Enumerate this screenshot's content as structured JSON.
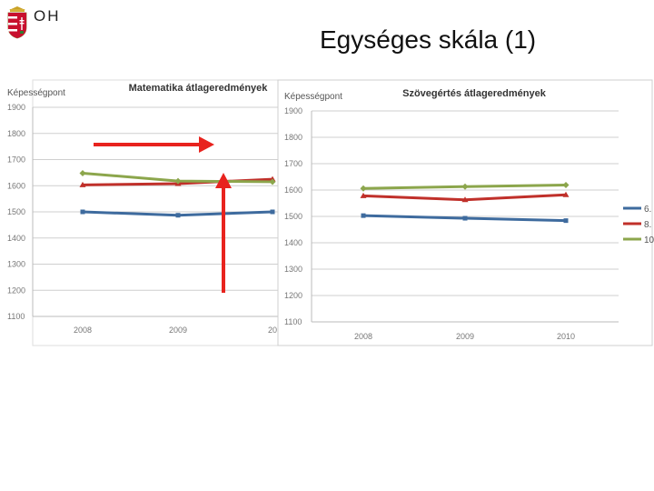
{
  "header": {
    "logo_text": "OH",
    "title": "Egységes skála (1)"
  },
  "colors": {
    "series1": "#3E6B9E",
    "series2": "#C0302A",
    "series3": "#8CA64C",
    "arrow": "#E8231E"
  },
  "chart_data": [
    {
      "type": "line",
      "title": "Matematika átlageredmények",
      "ylabel": "Képességpont",
      "ylim": [
        1100,
        1900
      ],
      "yticks": [
        1100,
        1200,
        1300,
        1400,
        1500,
        1600,
        1700,
        1800,
        1900
      ],
      "ytick_labels": [
        "1100",
        "1200",
        "1300",
        "1400",
        "1500",
        "1600",
        "1700",
        "1800",
        "1900"
      ],
      "x": [
        "2008",
        "2009",
        "20"
      ],
      "grid": true,
      "series": [
        {
          "values": [
            1500,
            1487,
            1500
          ],
          "color": "#3E6B9E",
          "marker": "square"
        },
        {
          "values": [
            1603,
            1608,
            1625
          ],
          "color": "#C0302A",
          "marker": "triangle"
        },
        {
          "values": [
            1648,
            1618,
            1615
          ],
          "color": "#8CA64C",
          "marker": "diamond"
        }
      ]
    },
    {
      "type": "line",
      "title": "Szövegértés átlageredmények",
      "ylabel": "Képességpont",
      "ylim": [
        1100,
        1900
      ],
      "yticks": [
        1100,
        1200,
        1300,
        1400,
        1500,
        1600,
        1700,
        1800,
        1900
      ],
      "ytick_labels": [
        "1100",
        "1200",
        "1300",
        "1400",
        "1500",
        "1600",
        "1700",
        "1800",
        "1900"
      ],
      "x": [
        "2008",
        "2009",
        "2010"
      ],
      "grid": true,
      "legend": "right",
      "legend_labels": [
        "6.",
        "8.",
        "10"
      ],
      "series": [
        {
          "values": [
            1503,
            1493,
            1484
          ],
          "color": "#3E6B9E",
          "marker": "square"
        },
        {
          "values": [
            1578,
            1563,
            1582
          ],
          "color": "#C0302A",
          "marker": "triangle"
        },
        {
          "values": [
            1606,
            1613,
            1619
          ],
          "color": "#8CA64C",
          "marker": "diamond"
        }
      ]
    }
  ]
}
